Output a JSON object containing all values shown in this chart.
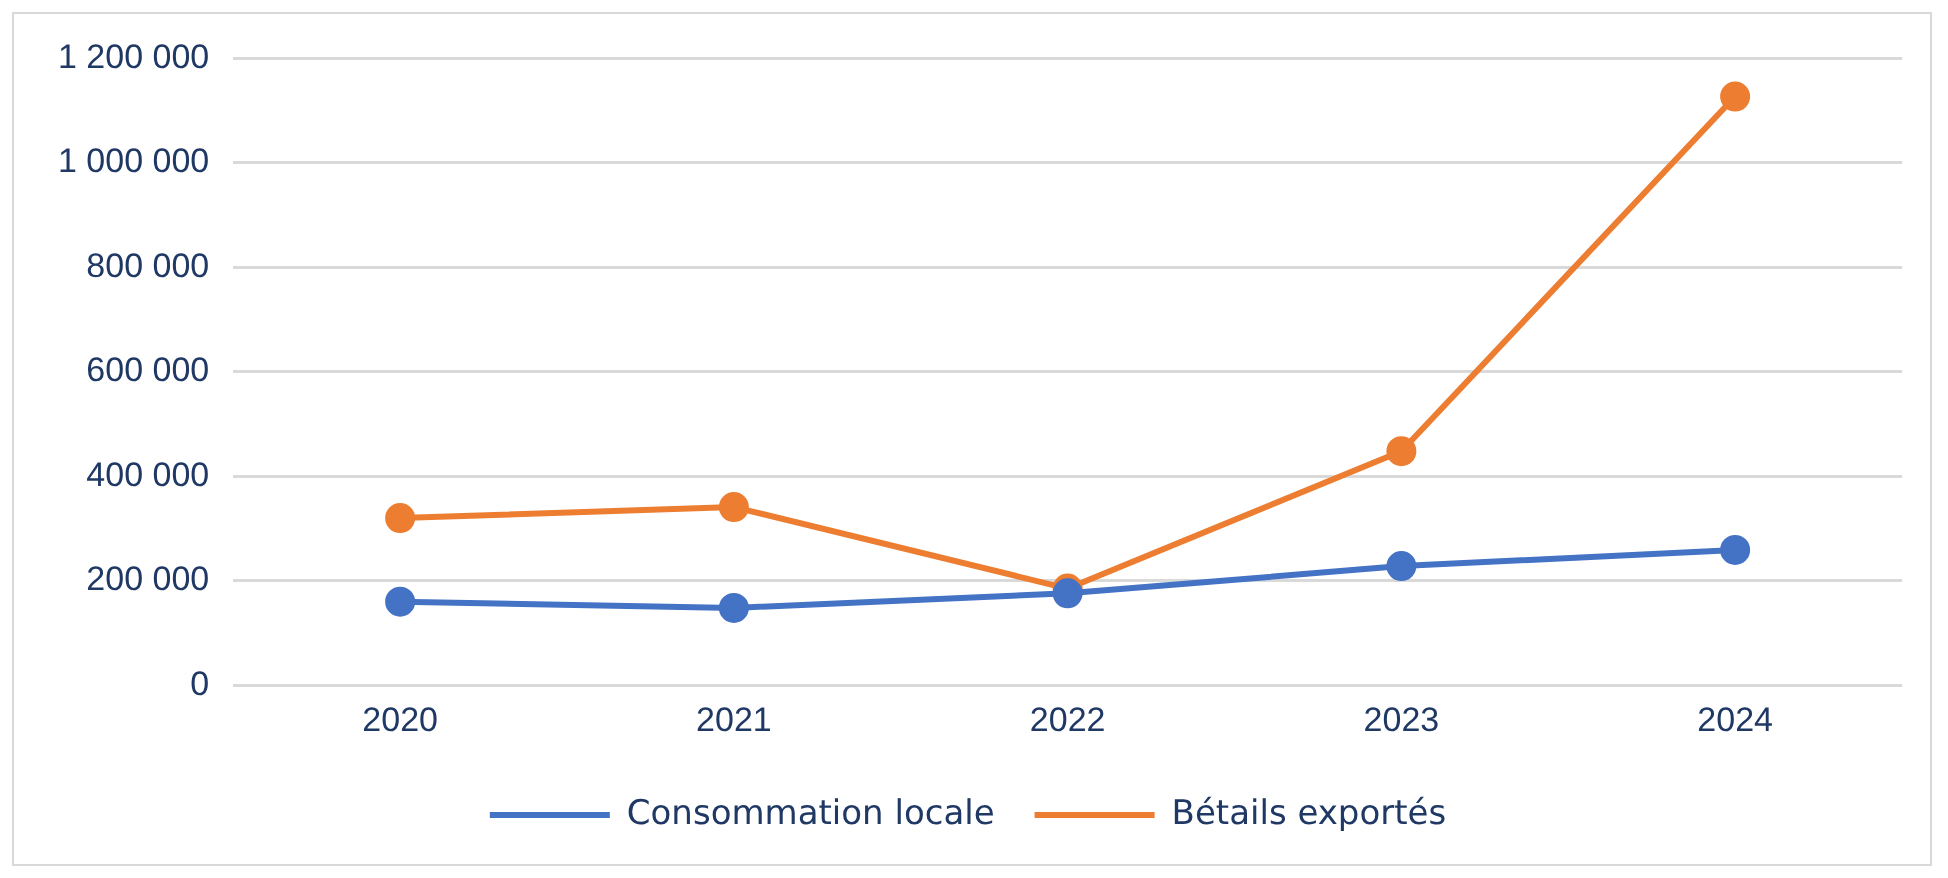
{
  "chart_data": {
    "type": "line",
    "categories": [
      "2020",
      "2021",
      "2022",
      "2023",
      "2024"
    ],
    "series": [
      {
        "name": "Consommation locale",
        "color": "#4472c4",
        "values": [
          160000,
          148000,
          176000,
          228000,
          259000
        ]
      },
      {
        "name": "Bétails exportés",
        "color": "#ed7d31",
        "values": [
          320000,
          341000,
          185000,
          448000,
          1127000
        ]
      }
    ],
    "ylim": [
      0,
      1200000
    ],
    "yticks": [
      0,
      {
        "value": 200000,
        "label": "200 000"
      },
      {
        "value": 400000,
        "label": "400 000"
      },
      {
        "value": 600000,
        "label": "600 000"
      },
      {
        "value": 800000,
        "label": "800 000"
      },
      {
        "value": 1000000,
        "label": "1 000 000"
      },
      {
        "value": 1200000,
        "label": "1 200 000"
      }
    ],
    "grid": "y",
    "legend": "bottom",
    "marker": "circle",
    "line_style": "solid"
  }
}
